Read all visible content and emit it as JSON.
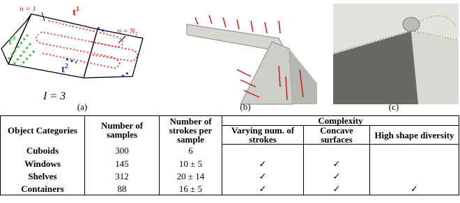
{
  "figure": {
    "panels": [
      "(a)",
      "(b)",
      "(c)"
    ],
    "diagram": {
      "start_label": "n = 1",
      "end_label": {
        "text": "n = N",
        "sub": "1"
      },
      "strokes": [
        {
          "symbol": "t",
          "index": "1"
        },
        {
          "symbol": "t",
          "index": "2"
        },
        {
          "symbol": "t",
          "index": "3"
        }
      ],
      "count": "I = 3"
    }
  },
  "table": {
    "header": {
      "object": "Object Categories",
      "samples": "Number of samples",
      "strokes": "Number of strokes per sample",
      "complexity": "Complexity",
      "sub": [
        "Varying num. of strokes",
        "Concave surfaces",
        "High shape diversity"
      ]
    },
    "rows": [
      [
        "Cuboids",
        300,
        "6",
        null,
        null,
        null
      ],
      [
        "Windows",
        145,
        "10 ± 5",
        "✓",
        "✓",
        null
      ],
      [
        "Shelves",
        312,
        "20 ± 14",
        "✓",
        "✓",
        null
      ],
      [
        "Containers",
        88,
        "16 ± 5",
        "✓",
        "✓",
        "✓"
      ]
    ]
  }
}
